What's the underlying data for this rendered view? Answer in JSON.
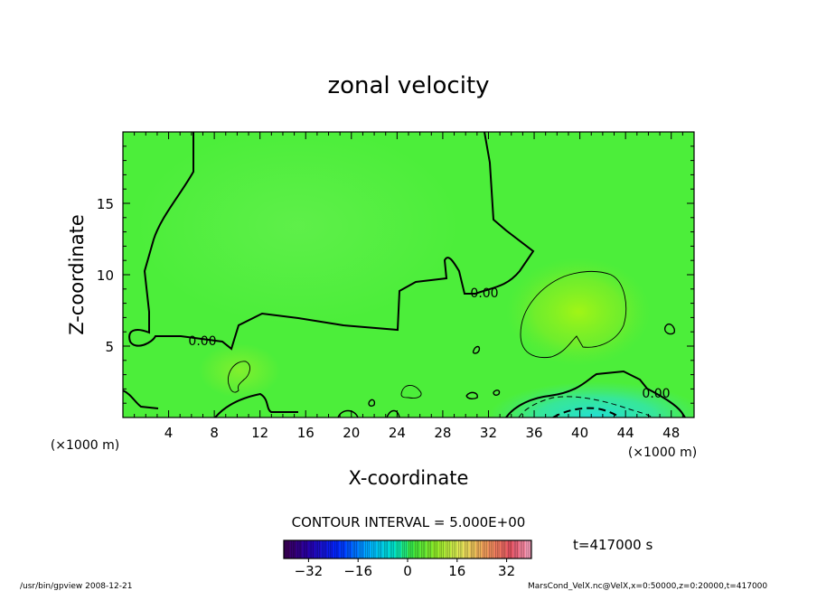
{
  "chart_data": {
    "type": "heatmap",
    "title": "zonal velocity",
    "xlabel": "X-coordinate",
    "ylabel": "Z-coordinate",
    "x_unit_label": "(×1000 m)",
    "z_unit_label": "(×1000 m)",
    "xlim": [
      0,
      50
    ],
    "ylim": [
      0,
      20
    ],
    "x_ticks": [
      4,
      8,
      12,
      16,
      20,
      24,
      28,
      32,
      36,
      40,
      44,
      48
    ],
    "y_ticks": [
      5,
      10,
      15
    ],
    "contour_interval_text": "CONTOUR INTERVAL = 5.000E+00",
    "contour_labels": [
      "0.00",
      "0.00",
      "0.00"
    ],
    "colorbar": {
      "range": [
        -40,
        40
      ],
      "ticks": [
        -32,
        -16,
        0,
        16,
        32
      ],
      "colormap": "rainbow"
    },
    "time_text": "t=417000 s",
    "field_description_approx": {
      "background_value": 0,
      "positive_max_near": {
        "x": 40,
        "z": 8,
        "value": 5
      },
      "negative_min_near": {
        "x": 40,
        "z": 0.5,
        "value": -12
      }
    }
  },
  "footer": {
    "left": "/usr/bin/gpview   2008-12-21",
    "right": "MarsCond_VelX.nc@VelX,x=0:50000,z=0:20000,t=417000"
  },
  "colors": {
    "field_base": "#4cee3a",
    "positive": "#9af01c",
    "negative": "#3ce6c8",
    "contour": "#000000"
  }
}
